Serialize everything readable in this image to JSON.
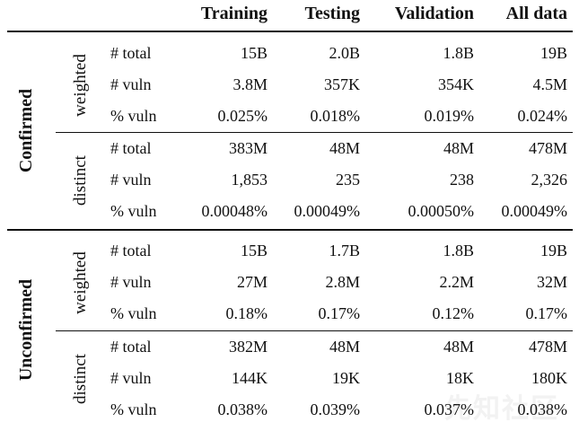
{
  "columns": [
    "Training",
    "Testing",
    "Validation",
    "All data"
  ],
  "groups": [
    {
      "label": "Confirmed",
      "subgroups": [
        {
          "label": "weighted",
          "rows": [
            {
              "metric": "# total",
              "values": [
                "15B",
                "2.0B",
                "1.8B",
                "19B"
              ]
            },
            {
              "metric": "# vuln",
              "values": [
                "3.8M",
                "357K",
                "354K",
                "4.5M"
              ]
            },
            {
              "metric": "% vuln",
              "values": [
                "0.025%",
                "0.018%",
                "0.019%",
                "0.024%"
              ]
            }
          ]
        },
        {
          "label": "distinct",
          "rows": [
            {
              "metric": "# total",
              "values": [
                "383M",
                "48M",
                "48M",
                "478M"
              ]
            },
            {
              "metric": "# vuln",
              "values": [
                "1,853",
                "235",
                "238",
                "2,326"
              ]
            },
            {
              "metric": "% vuln",
              "values": [
                "0.00048%",
                "0.00049%",
                "0.00050%",
                "0.00049%"
              ]
            }
          ]
        }
      ]
    },
    {
      "label": "Unconfirmed",
      "subgroups": [
        {
          "label": "weighted",
          "rows": [
            {
              "metric": "# total",
              "values": [
                "15B",
                "1.7B",
                "1.8B",
                "19B"
              ]
            },
            {
              "metric": "# vuln",
              "values": [
                "27M",
                "2.8M",
                "2.2M",
                "32M"
              ]
            },
            {
              "metric": "% vuln",
              "values": [
                "0.18%",
                "0.17%",
                "0.12%",
                "0.17%"
              ]
            }
          ]
        },
        {
          "label": "distinct",
          "rows": [
            {
              "metric": "# total",
              "values": [
                "382M",
                "48M",
                "48M",
                "478M"
              ]
            },
            {
              "metric": "# vuln",
              "values": [
                "144K",
                "19K",
                "18K",
                "180K"
              ]
            },
            {
              "metric": "% vuln",
              "values": [
                "0.038%",
                "0.039%",
                "0.037%",
                "0.038%"
              ]
            }
          ]
        }
      ]
    }
  ],
  "watermark": "先知社区"
}
